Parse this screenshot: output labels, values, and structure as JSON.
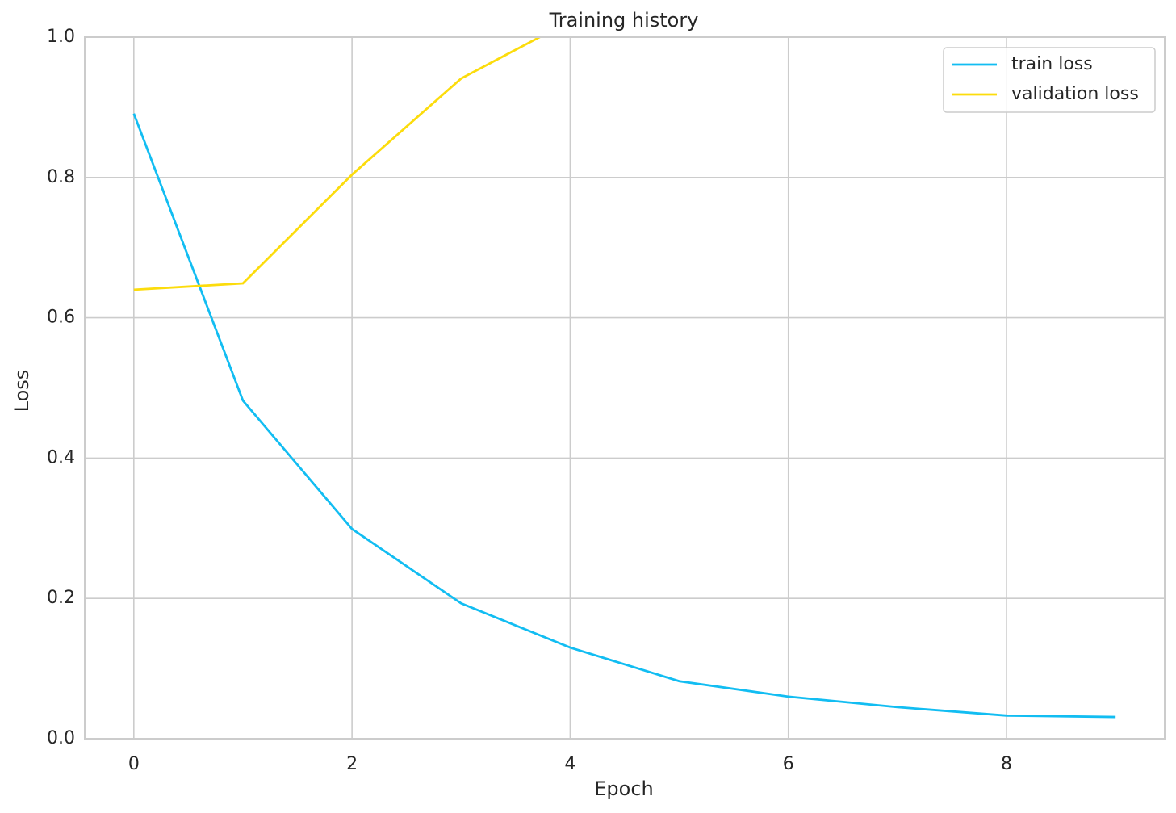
{
  "chart_data": {
    "type": "line",
    "title": "Training history",
    "x_label": "Epoch",
    "y_label": "Loss",
    "x": [
      0,
      1,
      2,
      3,
      4,
      5,
      6,
      7,
      8,
      9
    ],
    "series": [
      {
        "name": "train loss",
        "color": "#12bdf2",
        "values": [
          0.891,
          0.482,
          0.299,
          0.193,
          0.13,
          0.082,
          0.06,
          0.045,
          0.033,
          0.031
        ]
      },
      {
        "name": "validation loss",
        "color": "#fcdc0c",
        "values": [
          0.64,
          0.649,
          0.804,
          0.941,
          1.023,
          null,
          null,
          null,
          null,
          null
        ]
      }
    ],
    "xlim": [
      -0.45,
      9.45
    ],
    "xticks": [
      0,
      2,
      4,
      6,
      8
    ],
    "ylim": [
      0,
      1
    ],
    "yticks": [
      {
        "value": 0,
        "label": "0.0"
      },
      0.2,
      0.4,
      0.6,
      0.8,
      {
        "value": 1,
        "label": "1.0"
      }
    ],
    "grid": true,
    "legend": "upper right"
  }
}
